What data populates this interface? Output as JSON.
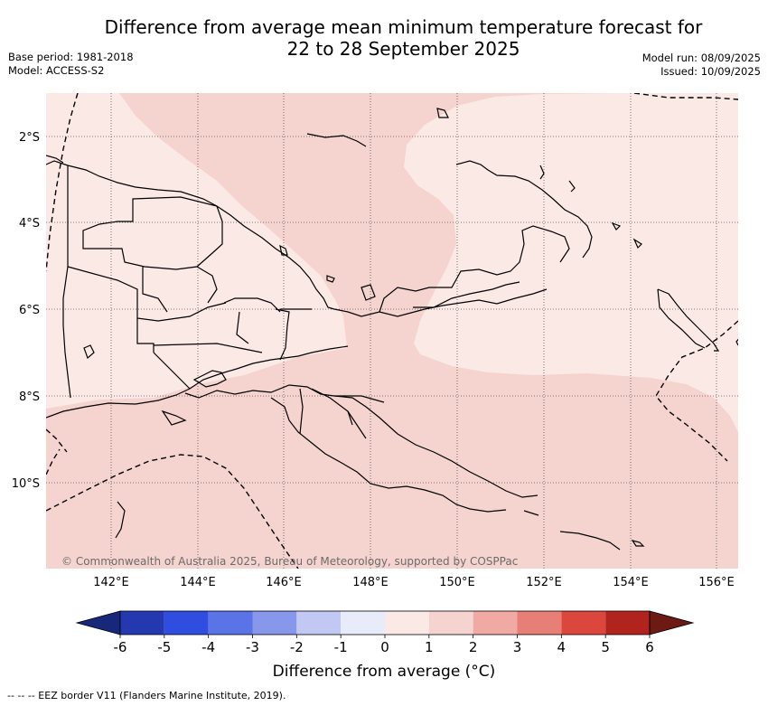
{
  "header": {
    "title_line1": "Difference from average mean minimum temperature forecast for",
    "title_line2": "22 to 28 September 2025",
    "base_period": "Base period: 1981-2018",
    "model": "Model: ACCESS-S2",
    "model_run": "Model run: 08/09/2025",
    "issued": "Issued: 10/09/2025"
  },
  "map": {
    "lat_labels": [
      "2°S",
      "4°S",
      "6°S",
      "8°S",
      "10°S"
    ],
    "lon_labels": [
      "142°E",
      "144°E",
      "146°E",
      "148°E",
      "150°E",
      "152°E",
      "154°E",
      "156°E"
    ],
    "copyright": "© Commonwealth of Australia 2025, Bureau of Meteorology, supported by COSPPac",
    "colors": {
      "anomaly_0_to_1": "#fbe9e6",
      "anomaly_1_to_2": "#f5d4cf",
      "coastline": "#000000",
      "grid": "#555555"
    }
  },
  "colorbar": {
    "tick_labels": [
      "-6",
      "-5",
      "-4",
      "-3",
      "-2",
      "-1",
      "0",
      "1",
      "2",
      "3",
      "4",
      "5",
      "6"
    ],
    "colors": [
      "#17287a",
      "#2438b0",
      "#2f4ee0",
      "#5a73e6",
      "#8797ec",
      "#c1c8f4",
      "#e8ebfa",
      "#fbe9e6",
      "#f5d4cf",
      "#f0aaa3",
      "#e77f77",
      "#db473c",
      "#b0241d",
      "#6e1a14"
    ],
    "label": "Difference from average (°C)"
  },
  "footer": {
    "eez_note": "--  --  -- EEZ border V11 (Flanders Marine Institute, 2019)."
  }
}
